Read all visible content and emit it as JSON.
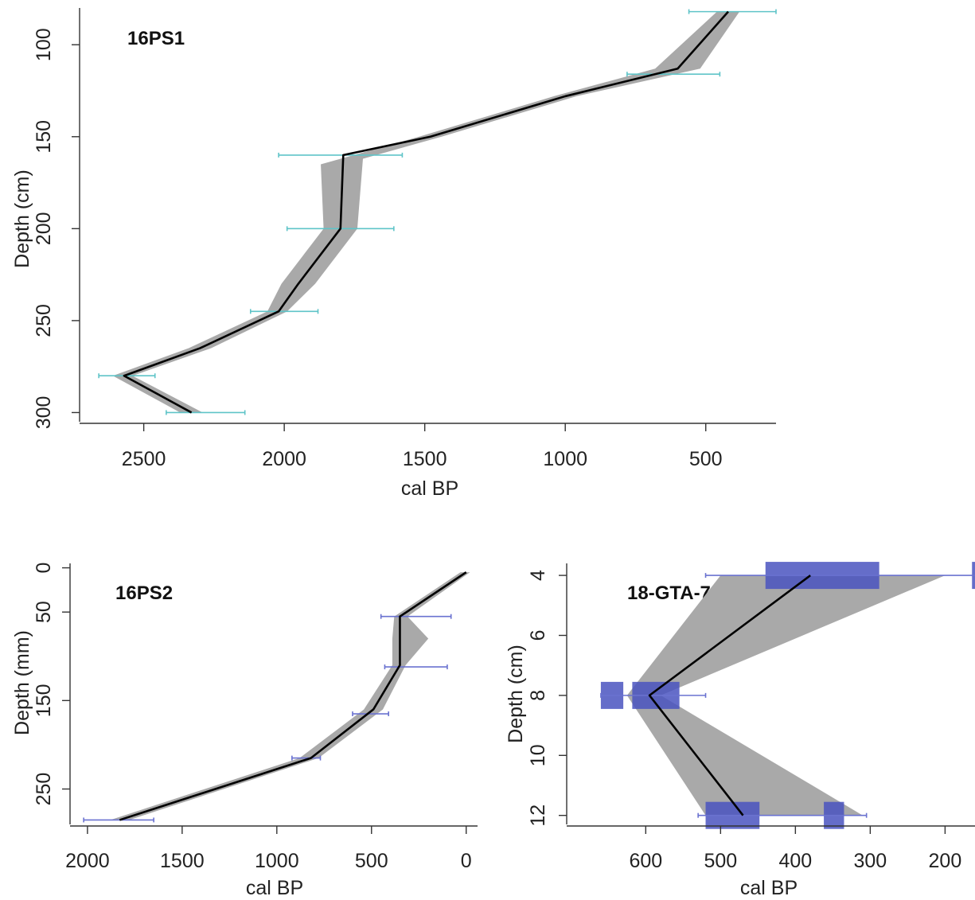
{
  "colors": {
    "background": "#ffffff",
    "band": "#a9a9a9",
    "median": "#000000",
    "axis": "#333333",
    "date_line_top": "#5fc4c8",
    "date_line_bottom": "#6a72d0",
    "date_box": "#4a53c0"
  },
  "chart_data": [
    {
      "type": "line",
      "title": "16PS1",
      "xlabel": "cal BP",
      "ylabel": "Depth (cm)",
      "xlim": [
        2700,
        250
      ],
      "ylim": [
        305,
        80
      ],
      "x_reversed": true,
      "y_reversed": true,
      "xticks": [
        2500,
        2000,
        1500,
        1000,
        500
      ],
      "yticks": [
        100,
        150,
        200,
        250,
        300
      ],
      "series": [
        {
          "role": "median",
          "points": [
            [
              420,
              82
            ],
            [
              600,
              113
            ],
            [
              1000,
              128
            ],
            [
              1480,
              150
            ],
            [
              1790,
              160
            ],
            [
              1800,
              200
            ],
            [
              1950,
              230
            ],
            [
              2020,
              245
            ],
            [
              2300,
              265
            ],
            [
              2570,
              280
            ],
            [
              2330,
              300
            ]
          ]
        },
        {
          "role": "range",
          "upper": [
            [
              380,
              82
            ],
            [
              520,
              113
            ],
            [
              960,
              128
            ],
            [
              1440,
              150
            ],
            [
              1720,
              162
            ],
            [
              1740,
              200
            ],
            [
              1890,
              230
            ],
            [
              1990,
              245
            ],
            [
              2260,
              265
            ],
            [
              2540,
              280
            ],
            [
              2290,
              300
            ]
          ],
          "lower": [
            [
              460,
              82
            ],
            [
              680,
              113
            ],
            [
              1040,
              128
            ],
            [
              1520,
              150
            ],
            [
              1870,
              165
            ],
            [
              1860,
              200
            ],
            [
              2010,
              230
            ],
            [
              2060,
              245
            ],
            [
              2340,
              265
            ],
            [
              2610,
              280
            ],
            [
              2370,
              300
            ]
          ]
        }
      ],
      "dates": [
        {
          "depth": 82,
          "min": 250,
          "max": 560
        },
        {
          "depth": 116,
          "min": 450,
          "max": 780
        },
        {
          "depth": 160,
          "min": 1580,
          "max": 2020
        },
        {
          "depth": 200,
          "min": 1610,
          "max": 1990
        },
        {
          "depth": 245,
          "min": 1880,
          "max": 2120
        },
        {
          "depth": 280,
          "min": 2460,
          "max": 2660
        },
        {
          "depth": 300,
          "min": 2140,
          "max": 2420
        }
      ]
    },
    {
      "type": "line",
      "title": "16PS2",
      "xlabel": "cal BP",
      "ylabel": "Depth (mm)",
      "xlim": [
        2050,
        -60
      ],
      "ylim": [
        290,
        -5
      ],
      "x_reversed": true,
      "y_reversed": true,
      "xticks": [
        2000,
        1500,
        1000,
        500,
        0
      ],
      "yticks": [
        0,
        50,
        150,
        250
      ],
      "series": [
        {
          "role": "median",
          "points": [
            [
              0,
              5
            ],
            [
              350,
              55
            ],
            [
              350,
              80
            ],
            [
              350,
              110
            ],
            [
              490,
              160
            ],
            [
              820,
              215
            ],
            [
              1830,
              285
            ]
          ]
        },
        {
          "role": "range",
          "upper": [
            [
              -20,
              5
            ],
            [
              310,
              55
            ],
            [
              200,
              80
            ],
            [
              320,
              110
            ],
            [
              440,
              160
            ],
            [
              780,
              215
            ],
            [
              1780,
              285
            ]
          ],
          "lower": [
            [
              30,
              5
            ],
            [
              380,
              55
            ],
            [
              390,
              80
            ],
            [
              390,
              110
            ],
            [
              540,
              160
            ],
            [
              880,
              215
            ],
            [
              1880,
              285
            ]
          ]
        }
      ],
      "dates": [
        {
          "depth": 55,
          "min": 80,
          "max": 450
        },
        {
          "depth": 112,
          "min": 100,
          "max": 430
        },
        {
          "depth": 165,
          "min": 410,
          "max": 600
        },
        {
          "depth": 215,
          "min": 770,
          "max": 920
        },
        {
          "depth": 285,
          "min": 1650,
          "max": 2020
        }
      ]
    },
    {
      "type": "line",
      "title": "18-GTA-79",
      "xlabel": "cal BP",
      "ylabel": "Depth (cm)",
      "xlim": [
        695,
        160
      ],
      "ylim": [
        12.3,
        3.6
      ],
      "x_reversed": true,
      "y_reversed": true,
      "xticks": [
        600,
        500,
        400,
        300,
        200
      ],
      "yticks": [
        4,
        6,
        8,
        10,
        12
      ],
      "series": [
        {
          "role": "median",
          "points": [
            [
              380,
              4
            ],
            [
              595,
              8
            ],
            [
              470,
              12
            ]
          ]
        },
        {
          "role": "range",
          "upper": [
            [
              200,
              4
            ],
            [
              580,
              8
            ],
            [
              310,
              12
            ]
          ],
          "lower": [
            [
              500,
              4
            ],
            [
              625,
              8
            ],
            [
              520,
              12
            ]
          ]
        }
      ],
      "dates": [
        {
          "depth": 4,
          "min": 158,
          "max": 520
        },
        {
          "depth": 8,
          "min": 520,
          "max": 660
        },
        {
          "depth": 12,
          "min": 305,
          "max": 530
        }
      ],
      "probability_boxes": [
        {
          "depth": 4,
          "min": 288,
          "max": 440
        },
        {
          "depth": 4,
          "min": 158,
          "max": 164
        },
        {
          "depth": 8,
          "min": 630,
          "max": 660
        },
        {
          "depth": 8,
          "min": 555,
          "max": 618
        },
        {
          "depth": 12,
          "min": 448,
          "max": 520
        },
        {
          "depth": 12,
          "min": 335,
          "max": 362
        }
      ]
    }
  ]
}
